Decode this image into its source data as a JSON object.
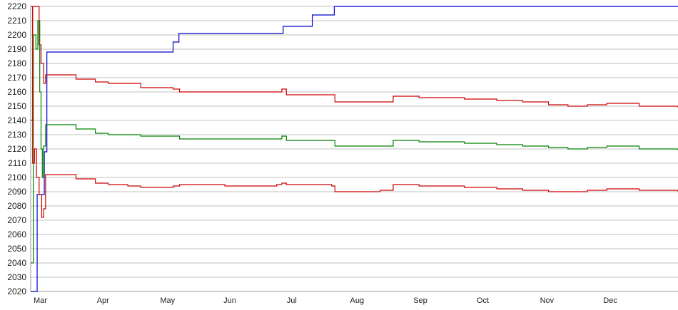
{
  "chart_data": {
    "type": "line",
    "title": "",
    "xlabel": "",
    "ylabel": "",
    "ylim": [
      2020,
      2220
    ],
    "xlim": [
      0,
      100
    ],
    "yticks": [
      2020,
      2030,
      2040,
      2050,
      2060,
      2070,
      2080,
      2090,
      2100,
      2110,
      2120,
      2130,
      2140,
      2150,
      2160,
      2170,
      2180,
      2190,
      2200,
      2210,
      2220
    ],
    "xtick_labels": [
      "Mar",
      "Apr",
      "May",
      "Jun",
      "Jul",
      "Aug",
      "Sep",
      "Oct",
      "Nov",
      "Dec"
    ],
    "grid": "horizontal",
    "step": true,
    "series": [
      {
        "color": "#0000cc",
        "points": [
          [
            0,
            2020
          ],
          [
            1,
            2088
          ],
          [
            1.9,
            2088
          ],
          [
            2.1,
            2118
          ],
          [
            2.5,
            2188
          ],
          [
            21.6,
            2188
          ],
          [
            22,
            2195
          ],
          [
            22.9,
            2201
          ],
          [
            38.6,
            2201
          ],
          [
            39,
            2206
          ],
          [
            43.2,
            2206
          ],
          [
            43.5,
            2214
          ],
          [
            46.9,
            2220
          ],
          [
            100,
            2220
          ]
        ]
      },
      {
        "color": "#cc0000",
        "points": [
          [
            0,
            2140
          ],
          [
            0.3,
            2220
          ],
          [
            1,
            2220
          ],
          [
            1.3,
            2193
          ],
          [
            1.6,
            2180
          ],
          [
            2,
            2166
          ],
          [
            2.3,
            2172
          ],
          [
            5,
            2172
          ],
          [
            7,
            2169
          ],
          [
            10,
            2167
          ],
          [
            12,
            2166
          ],
          [
            17,
            2163
          ],
          [
            22,
            2162
          ],
          [
            23,
            2160
          ],
          [
            30,
            2160
          ],
          [
            38,
            2160
          ],
          [
            38.8,
            2162
          ],
          [
            39.5,
            2158
          ],
          [
            46.5,
            2158
          ],
          [
            47,
            2153
          ],
          [
            54,
            2153
          ],
          [
            56,
            2157
          ],
          [
            60,
            2156
          ],
          [
            67,
            2155
          ],
          [
            72,
            2154
          ],
          [
            76,
            2153
          ],
          [
            80,
            2151
          ],
          [
            83,
            2150
          ],
          [
            86,
            2151
          ],
          [
            89,
            2152
          ],
          [
            94,
            2150
          ],
          [
            100,
            2149
          ]
        ]
      },
      {
        "color": "#008000",
        "points": [
          [
            0,
            2040
          ],
          [
            0.4,
            2200
          ],
          [
            0.8,
            2190
          ],
          [
            1.1,
            2210
          ],
          [
            1.4,
            2160
          ],
          [
            1.6,
            2120
          ],
          [
            1.8,
            2100
          ],
          [
            2,
            2122
          ],
          [
            2.3,
            2137
          ],
          [
            5,
            2137
          ],
          [
            7,
            2134
          ],
          [
            10,
            2131
          ],
          [
            12,
            2130
          ],
          [
            17,
            2129
          ],
          [
            22,
            2129
          ],
          [
            23,
            2127
          ],
          [
            30,
            2127
          ],
          [
            38,
            2127
          ],
          [
            38.8,
            2129
          ],
          [
            39.5,
            2126
          ],
          [
            46.5,
            2126
          ],
          [
            47,
            2122
          ],
          [
            54,
            2122
          ],
          [
            56,
            2126
          ],
          [
            60,
            2125
          ],
          [
            67,
            2124
          ],
          [
            72,
            2123
          ],
          [
            76,
            2122
          ],
          [
            80,
            2121
          ],
          [
            83,
            2120
          ],
          [
            86,
            2121
          ],
          [
            89,
            2122
          ],
          [
            94,
            2120
          ],
          [
            100,
            2119
          ]
        ]
      },
      {
        "color": "#cc0000",
        "points": [
          [
            0,
            2220
          ],
          [
            0.3,
            2110
          ],
          [
            0.6,
            2120
          ],
          [
            0.9,
            2100
          ],
          [
            1.3,
            2088
          ],
          [
            1.7,
            2072
          ],
          [
            2,
            2078
          ],
          [
            2.3,
            2102
          ],
          [
            5,
            2102
          ],
          [
            7,
            2099
          ],
          [
            10,
            2096
          ],
          [
            12,
            2095
          ],
          [
            15,
            2094
          ],
          [
            17,
            2093
          ],
          [
            22,
            2094
          ],
          [
            23,
            2095
          ],
          [
            30,
            2094
          ],
          [
            38,
            2095
          ],
          [
            38.8,
            2096
          ],
          [
            39.5,
            2095
          ],
          [
            46.5,
            2094
          ],
          [
            47,
            2090
          ],
          [
            54,
            2091
          ],
          [
            56,
            2095
          ],
          [
            60,
            2094
          ],
          [
            67,
            2093
          ],
          [
            72,
            2092
          ],
          [
            76,
            2091
          ],
          [
            80,
            2090
          ],
          [
            83,
            2090
          ],
          [
            86,
            2091
          ],
          [
            89,
            2092
          ],
          [
            94,
            2091
          ],
          [
            100,
            2090
          ]
        ]
      }
    ]
  }
}
